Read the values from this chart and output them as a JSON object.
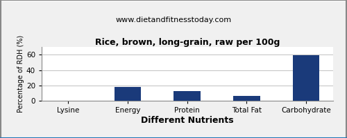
{
  "title": "Rice, brown, long-grain, raw per 100g",
  "subtitle": "www.dietandfitnesstoday.com",
  "xlabel": "Different Nutrients",
  "ylabel": "Percentage of RDH (%)",
  "categories": [
    "Lysine",
    "Energy",
    "Protein",
    "Total Fat",
    "Carbohydrate"
  ],
  "values": [
    0.4,
    18,
    13,
    6,
    59.5
  ],
  "bar_color": "#1a3a7a",
  "ylim": [
    0,
    70
  ],
  "yticks": [
    0,
    20,
    40,
    60
  ],
  "background_color": "#f0f0f0",
  "plot_bg_color": "#ffffff",
  "title_fontsize": 9,
  "subtitle_fontsize": 8,
  "xlabel_fontsize": 9,
  "ylabel_fontsize": 7,
  "tick_fontsize": 7.5,
  "bar_width": 0.45,
  "grid_color": "#c0c0c0",
  "border_color": "#888888"
}
